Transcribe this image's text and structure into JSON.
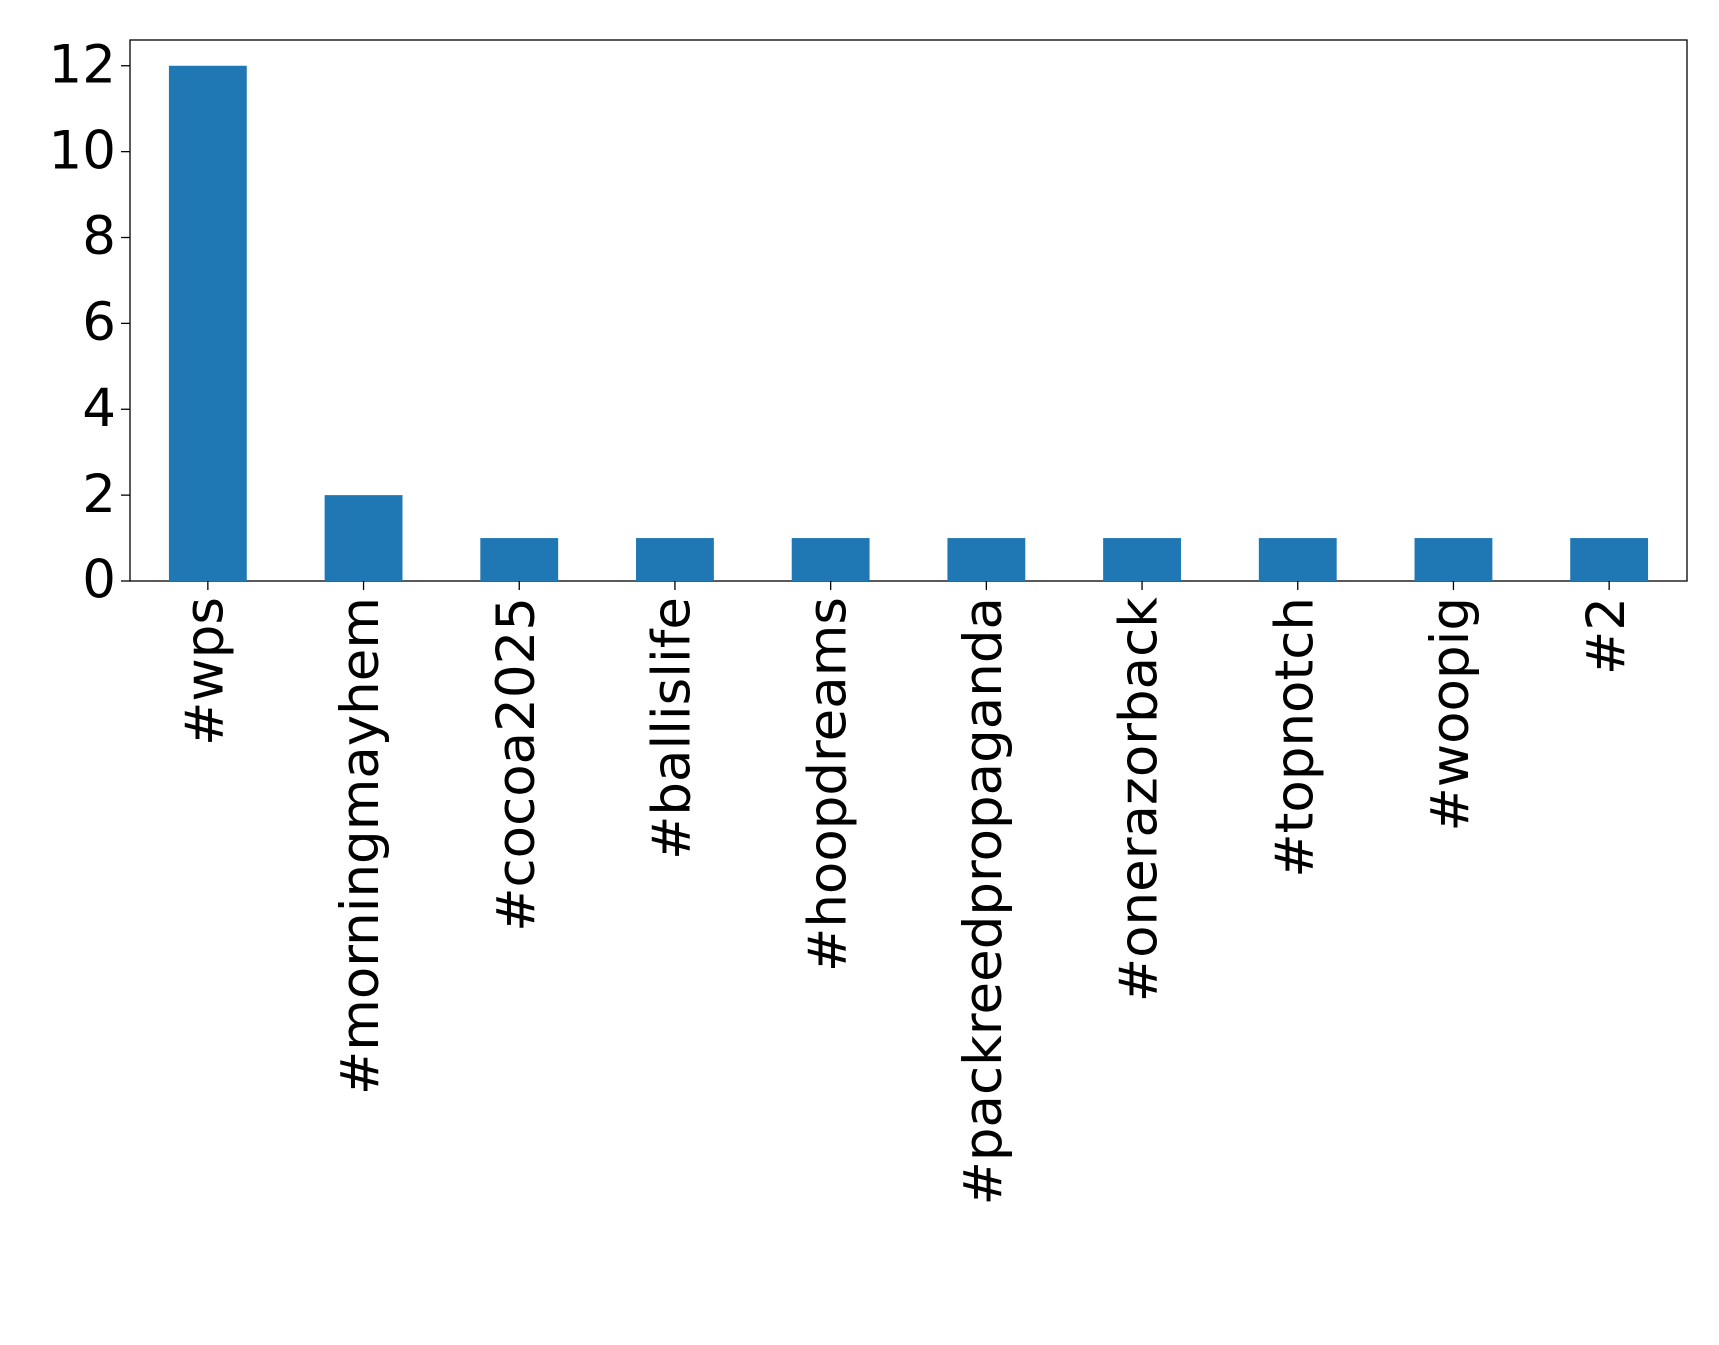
{
  "chart_data": {
    "type": "bar",
    "categories": [
      "#wps",
      "#morningmayhem",
      "#cocoa2025",
      "#ballislife",
      "#hoopdreams",
      "#packreedpropaganda",
      "#onerazorback",
      "#topnotch",
      "#woopig",
      "#2"
    ],
    "values": [
      12,
      2,
      1,
      1,
      1,
      1,
      1,
      1,
      1,
      1
    ],
    "color": "#1f77b4",
    "ylim": [
      0,
      12.6
    ],
    "yticks": [
      0,
      2,
      4,
      6,
      8,
      10,
      12
    ],
    "grid": false
  }
}
